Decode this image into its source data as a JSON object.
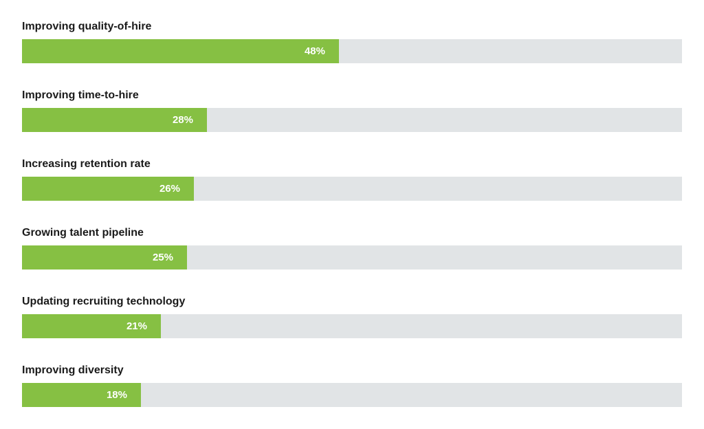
{
  "chart_data": {
    "type": "bar",
    "orientation": "horizontal",
    "categories": [
      "Improving quality-of-hire",
      "Improving time-to-hire",
      "Increasing retention rate",
      "Growing talent pipeline",
      "Updating recruiting technology",
      "Improving diversity"
    ],
    "values": [
      48,
      28,
      26,
      25,
      21,
      18
    ],
    "value_labels": [
      "48%",
      "28%",
      "26%",
      "25%",
      "21%",
      "18%"
    ],
    "xlim": [
      0,
      100
    ],
    "grid": false,
    "bar_color": "#86c043",
    "track_color": "#e1e4e6",
    "label_color": "#1a1a1a",
    "value_text_color": "#ffffff"
  }
}
